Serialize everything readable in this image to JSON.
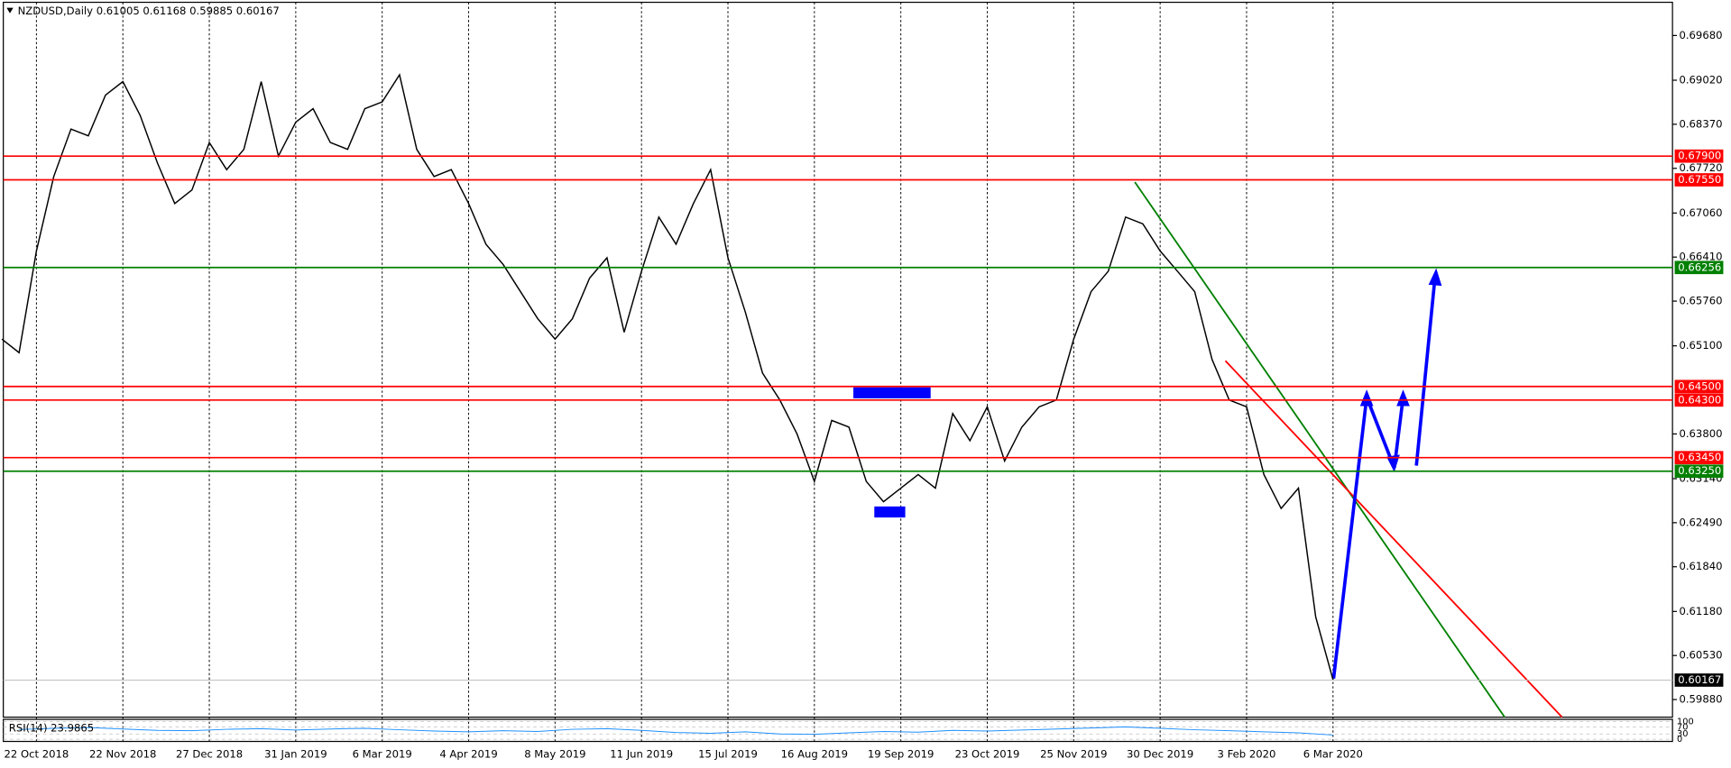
{
  "chart_data": {
    "type": "line",
    "title": "NZDUSD,Daily  0.61005 0.61168 0.59885 0.60167",
    "color": "#000000",
    "categories": [
      null,
      null,
      "22 Oct 2018",
      null,
      null,
      null,
      null,
      "22 Nov 2018",
      null,
      null,
      null,
      null,
      "27 Dec 2018",
      null,
      null,
      null,
      null,
      "31 Jan 2019",
      null,
      null,
      null,
      null,
      "6 Mar 2019",
      null,
      null,
      null,
      null,
      "4 Apr 2019",
      null,
      null,
      null,
      null,
      "8 May 2019",
      null,
      null,
      null,
      null,
      "11 Jun 2019",
      null,
      null,
      null,
      null,
      "15 Jul 2019",
      null,
      null,
      null,
      null,
      "16 Aug 2019",
      null,
      null,
      null,
      null,
      "19 Sep 2019",
      null,
      null,
      null,
      null,
      "23 Oct 2019",
      null,
      null,
      null,
      null,
      "25 Nov 2019",
      null,
      null,
      null,
      null,
      "30 Dec 2019",
      null,
      null,
      null,
      null,
      "3 Feb 2020",
      null,
      null,
      null,
      null,
      "6 Mar 2020"
    ],
    "values": [
      0.652,
      0.65,
      0.665,
      0.676,
      0.683,
      0.682,
      0.688,
      0.69,
      0.685,
      0.678,
      0.672,
      0.674,
      0.681,
      0.677,
      0.68,
      0.69,
      0.679,
      0.684,
      0.686,
      0.681,
      0.68,
      0.686,
      0.687,
      0.691,
      0.68,
      0.676,
      0.677,
      0.672,
      0.666,
      0.663,
      0.659,
      0.655,
      0.652,
      0.655,
      0.661,
      0.664,
      0.653,
      0.662,
      0.67,
      0.666,
      0.672,
      0.677,
      0.664,
      0.656,
      0.647,
      0.643,
      0.638,
      0.631,
      0.64,
      0.639,
      0.631,
      0.628,
      0.63,
      0.632,
      0.63,
      0.641,
      0.637,
      0.642,
      0.634,
      0.639,
      0.642,
      0.643,
      0.652,
      0.659,
      0.662,
      0.67,
      0.669,
      0.665,
      0.662,
      0.659,
      0.649,
      0.643,
      0.642,
      0.632,
      0.627,
      0.63,
      0.611,
      0.6017
    ],
    "ylim": [
      0.5962,
      0.7017
    ],
    "yticks": [
      {
        "value": 0.6968,
        "label": "0.69680"
      },
      {
        "value": 0.6902,
        "label": "0.69020"
      },
      {
        "value": 0.6837,
        "label": "0.68370"
      },
      {
        "value": 0.6772,
        "label": "0.67720"
      },
      {
        "value": 0.6706,
        "label": "0.67060"
      },
      {
        "value": 0.6641,
        "label": "0.66410"
      },
      {
        "value": 0.6576,
        "label": "0.65760"
      },
      {
        "value": 0.651,
        "label": "0.65100"
      },
      {
        "value": 0.638,
        "label": "0.63800"
      },
      {
        "value": 0.6314,
        "label": "0.63140"
      },
      {
        "value": 0.6249,
        "label": "0.62490"
      },
      {
        "value": 0.6184,
        "label": "0.61840"
      },
      {
        "value": 0.6118,
        "label": "0.61180"
      },
      {
        "value": 0.6053,
        "label": "0.60530"
      },
      {
        "value": 0.5988,
        "label": "0.59880"
      }
    ],
    "levels": [
      {
        "value": 0.679,
        "label": "0.67900",
        "color": "#ff0000"
      },
      {
        "value": 0.6755,
        "label": "0.67550",
        "color": "#ff0000"
      },
      {
        "value": 0.66256,
        "label": "0.66256",
        "color": "#008000"
      },
      {
        "value": 0.645,
        "label": "0.64500",
        "color": "#ff0000"
      },
      {
        "value": 0.643,
        "label": "0.64300",
        "color": "#ff0000"
      },
      {
        "value": 0.6345,
        "label": "0.63450",
        "color": "#ff0000"
      },
      {
        "value": 0.6325,
        "label": "0.63250",
        "color": "#008000"
      },
      {
        "value": 0.60167,
        "label": "0.60167",
        "color": "#000000"
      }
    ],
    "rsi": {
      "label": "RSI(14) 23.9865",
      "color": "#1e90ff",
      "ylim": [
        0,
        100
      ],
      "yticks": [
        0,
        30,
        70,
        100
      ],
      "values": [
        55,
        62,
        66,
        58,
        50,
        48,
        56,
        60,
        52,
        58,
        62,
        54,
        46,
        42,
        48,
        44,
        56,
        60,
        50,
        38,
        34,
        42,
        30,
        28,
        36,
        44,
        40,
        50,
        46,
        52,
        58,
        64,
        70,
        62,
        54,
        48,
        42,
        36,
        24
      ]
    }
  }
}
